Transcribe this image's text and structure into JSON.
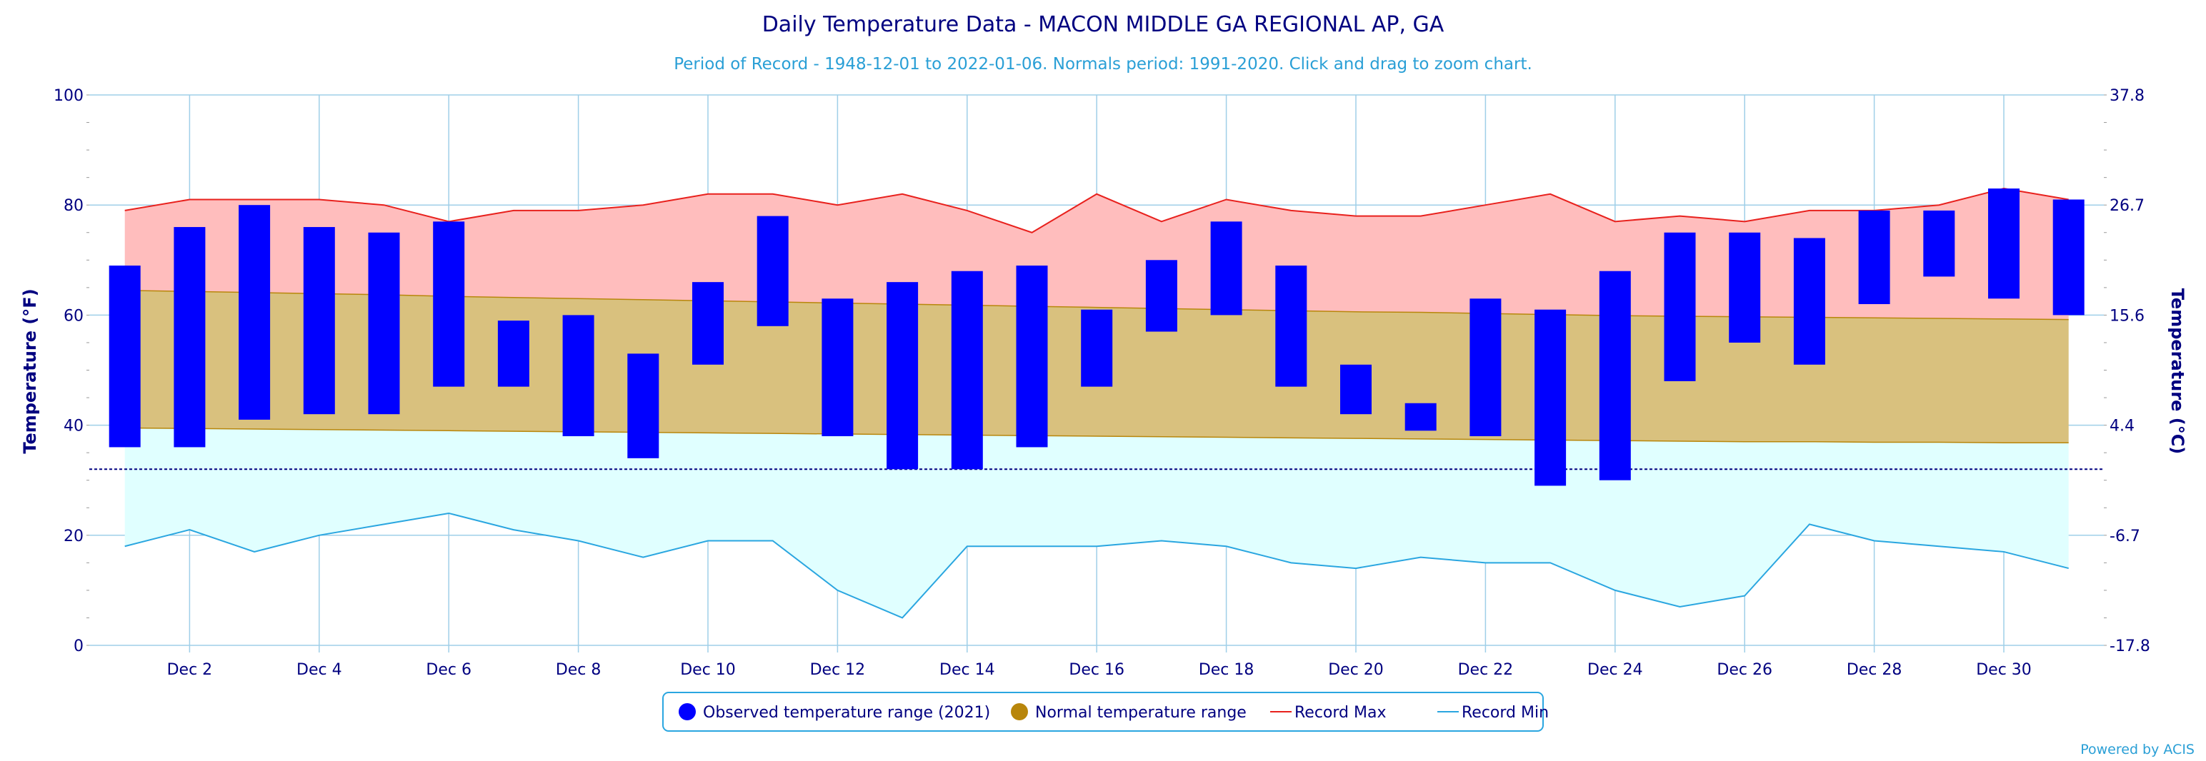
{
  "colors": {
    "observed": "#0000ff",
    "normal_band": "#d9c17e",
    "normal_legend": "#b8860b",
    "record_max_fill": "#ffbdbd",
    "record_max_line": "#e8211d",
    "record_min_fill": "#e0ffff",
    "record_min_line": "#2aa6e0",
    "freezing_line": "#000080",
    "grid": "#9fcfe8",
    "text": "#000080",
    "subtitle": "#2a9fd6"
  },
  "chart_data": {
    "type": "bar",
    "title": "Daily Temperature Data - MACON MIDDLE GA REGIONAL AP, GA",
    "subtitle": "Period of Record - 1948-12-01 to 2022-01-06. Normals period: 1991-2020. Click and drag to zoom chart.",
    "ylabel": "Temperature (°F)",
    "y2label": "Temperature (°C)",
    "ylim": [
      0,
      100
    ],
    "y_ticks": [
      0,
      20,
      40,
      60,
      80,
      100
    ],
    "y2_ticks": [
      "-17.8",
      "-6.7",
      "4.4",
      "15.6",
      "26.7",
      "37.8"
    ],
    "x": [
      1,
      2,
      3,
      4,
      5,
      6,
      7,
      8,
      9,
      10,
      11,
      12,
      13,
      14,
      15,
      16,
      17,
      18,
      19,
      20,
      21,
      22,
      23,
      24,
      25,
      26,
      27,
      28,
      29,
      30,
      31
    ],
    "x_tick_labels": [
      {
        "day": 2,
        "label": "Dec 2"
      },
      {
        "day": 4,
        "label": "Dec 4"
      },
      {
        "day": 6,
        "label": "Dec 6"
      },
      {
        "day": 8,
        "label": "Dec 8"
      },
      {
        "day": 10,
        "label": "Dec 10"
      },
      {
        "day": 12,
        "label": "Dec 12"
      },
      {
        "day": 14,
        "label": "Dec 14"
      },
      {
        "day": 16,
        "label": "Dec 16"
      },
      {
        "day": 18,
        "label": "Dec 18"
      },
      {
        "day": 20,
        "label": "Dec 20"
      },
      {
        "day": 22,
        "label": "Dec 22"
      },
      {
        "day": 24,
        "label": "Dec 24"
      },
      {
        "day": 26,
        "label": "Dec 26"
      },
      {
        "day": 28,
        "label": "Dec 28"
      },
      {
        "day": 30,
        "label": "Dec 30"
      }
    ],
    "grid": true,
    "freezing_line": 32,
    "series": [
      {
        "name": "Observed temperature range (2021)",
        "kind": "range-bar",
        "low": [
          36,
          36,
          41,
          42,
          42,
          47,
          47,
          38,
          34,
          51,
          58,
          38,
          32,
          32,
          36,
          47,
          57,
          60,
          47,
          42,
          39,
          38,
          29,
          30,
          48,
          55,
          51,
          62,
          67,
          63,
          60
        ],
        "high": [
          69,
          76,
          80,
          76,
          75,
          77,
          59,
          60,
          53,
          66,
          78,
          63,
          66,
          68,
          69,
          61,
          70,
          77,
          69,
          51,
          44,
          63,
          61,
          68,
          75,
          75,
          74,
          79,
          79,
          83,
          81
        ]
      },
      {
        "name": "Normal temperature range",
        "kind": "range-area",
        "low": [
          39.5,
          39.4,
          39.3,
          39.2,
          39.1,
          39.0,
          38.9,
          38.8,
          38.7,
          38.6,
          38.5,
          38.4,
          38.3,
          38.2,
          38.1,
          38.0,
          37.9,
          37.8,
          37.7,
          37.6,
          37.5,
          37.4,
          37.3,
          37.2,
          37.1,
          37.0,
          37.0,
          36.9,
          36.9,
          36.8,
          36.8
        ],
        "high": [
          64.5,
          64.3,
          64.1,
          63.9,
          63.7,
          63.4,
          63.2,
          63.0,
          62.8,
          62.6,
          62.4,
          62.2,
          62.0,
          61.8,
          61.6,
          61.4,
          61.2,
          61.0,
          60.8,
          60.6,
          60.5,
          60.3,
          60.1,
          59.9,
          59.8,
          59.7,
          59.6,
          59.5,
          59.4,
          59.3,
          59.2
        ]
      },
      {
        "name": "Record Max",
        "kind": "line",
        "values": [
          79,
          81,
          81,
          81,
          80,
          77,
          79,
          79,
          80,
          82,
          82,
          80,
          82,
          79,
          75,
          82,
          77,
          81,
          79,
          78,
          78,
          80,
          82,
          77,
          78,
          77,
          79,
          79,
          80,
          83,
          81
        ]
      },
      {
        "name": "Record Min",
        "kind": "line",
        "values": [
          18,
          21,
          17,
          20,
          22,
          24,
          21,
          19,
          16,
          19,
          19,
          10,
          5,
          18,
          18,
          18,
          19,
          18,
          15,
          14,
          16,
          15,
          15,
          10,
          7,
          9,
          22,
          19,
          18,
          17,
          14
        ]
      }
    ],
    "legend": {
      "placement": "bottom-center",
      "items": [
        {
          "label": "Observed temperature range (2021)",
          "symbol": "circle",
          "color": "#0000ff"
        },
        {
          "label": "Normal temperature range",
          "symbol": "circle",
          "color": "#b8860b"
        },
        {
          "label": "Record Max",
          "symbol": "line",
          "color": "#e8211d"
        },
        {
          "label": "Record Min",
          "symbol": "line",
          "color": "#2aa6e0"
        }
      ]
    }
  },
  "credit": "Powered by ACIS"
}
